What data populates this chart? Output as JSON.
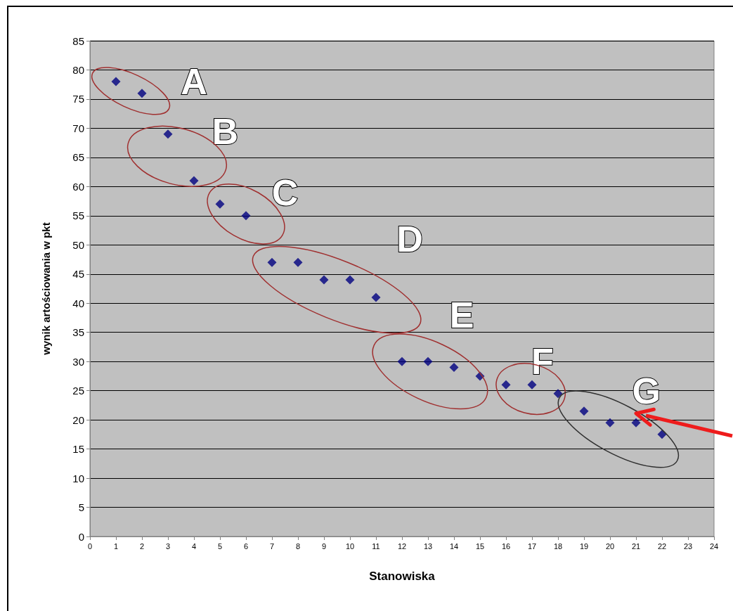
{
  "chart_data": {
    "type": "scatter",
    "xlabel": "Stanowiska",
    "ylabel": "wynik artościowania w pkt",
    "x": [
      1,
      2,
      3,
      4,
      5,
      6,
      7,
      8,
      9,
      10,
      11,
      12,
      13,
      14,
      15,
      16,
      17,
      18,
      19,
      20,
      21,
      22
    ],
    "series": [
      {
        "color": "#000080",
        "values": [
          78,
          76,
          69,
          61,
          57,
          55,
          47,
          47,
          44,
          44,
          41,
          30,
          30,
          29,
          27.5,
          26,
          26,
          24.5,
          21.5,
          19.5,
          19.5,
          17.5
        ]
      }
    ],
    "xlim": [
      0,
      24
    ],
    "xticks": [
      0,
      1,
      2,
      3,
      4,
      5,
      6,
      7,
      8,
      9,
      10,
      11,
      12,
      13,
      14,
      15,
      16,
      17,
      18,
      19,
      20,
      21,
      22,
      23,
      24
    ],
    "ylim": [
      0,
      85
    ],
    "yticks": [
      0,
      5,
      10,
      15,
      20,
      25,
      30,
      35,
      40,
      45,
      50,
      55,
      60,
      65,
      70,
      75,
      80,
      85
    ],
    "grid": "y",
    "marker": "diamond",
    "annotations": [
      "A",
      "B",
      "C",
      "D",
      "E",
      "F",
      "G"
    ]
  }
}
